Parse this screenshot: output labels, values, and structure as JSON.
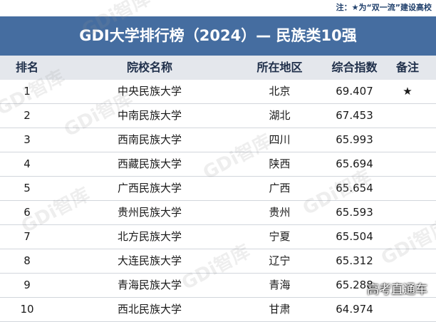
{
  "note": "注：★为“双一流”建设高校",
  "title": "GDI大学排行榜（2024）— 民族类10强",
  "headers": {
    "rank": "排名",
    "school": "院校名称",
    "location": "所在地区",
    "score": "综合指数",
    "remark": "备注"
  },
  "rows": [
    {
      "rank": "1",
      "school": "中央民族大学",
      "location": "北京",
      "score": "69.407",
      "remark": "★"
    },
    {
      "rank": "2",
      "school": "中南民族大学",
      "location": "湖北",
      "score": "67.453",
      "remark": ""
    },
    {
      "rank": "3",
      "school": "西南民族大学",
      "location": "四川",
      "score": "65.993",
      "remark": ""
    },
    {
      "rank": "4",
      "school": "西藏民族大学",
      "location": "陕西",
      "score": "65.694",
      "remark": ""
    },
    {
      "rank": "5",
      "school": "广西民族大学",
      "location": "广西",
      "score": "65.654",
      "remark": ""
    },
    {
      "rank": "6",
      "school": "贵州民族大学",
      "location": "贵州",
      "score": "65.593",
      "remark": ""
    },
    {
      "rank": "7",
      "school": "北方民族大学",
      "location": "宁夏",
      "score": "65.504",
      "remark": ""
    },
    {
      "rank": "8",
      "school": "大连民族大学",
      "location": "辽宁",
      "score": "65.312",
      "remark": ""
    },
    {
      "rank": "9",
      "school": "青海民族大学",
      "location": "青海",
      "score": "65.288",
      "remark": ""
    },
    {
      "rank": "10",
      "school": "西北民族大学",
      "location": "甘肃",
      "score": "64.974",
      "remark": ""
    }
  ],
  "watermark": "GDi智库",
  "credit": "高考直通车"
}
